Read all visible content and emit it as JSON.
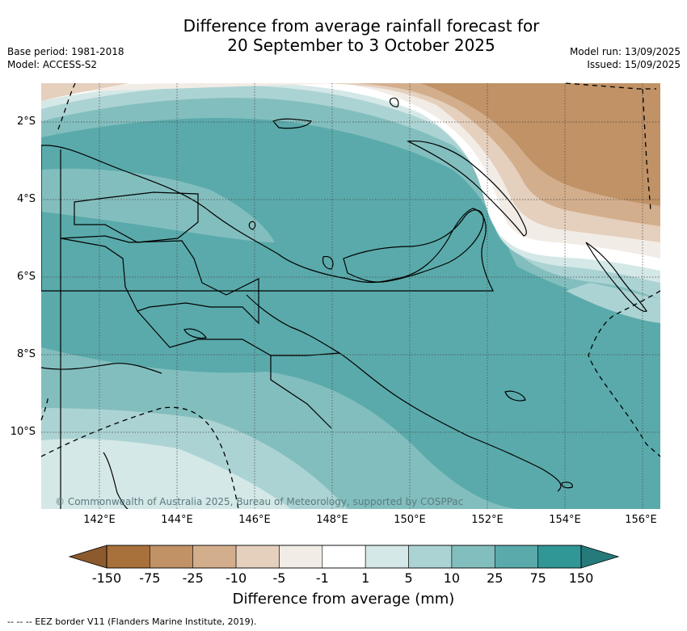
{
  "header": {
    "title_line1": "Difference from average rainfall forecast for",
    "title_line2": "20 September to 3 October 2025",
    "base_period": "Base period: 1981-2018",
    "model": "Model: ACCESS-S2",
    "model_run": "Model run: 13/09/2025",
    "issued": "Issued: 15/09/2025"
  },
  "map": {
    "region": "Papua New Guinea",
    "lat_labels": [
      "2°S",
      "4°S",
      "6°S",
      "8°S",
      "10°S"
    ],
    "lon_labels": [
      "142°E",
      "144°E",
      "146°E",
      "148°E",
      "150°E",
      "152°E",
      "154°E",
      "156°E"
    ],
    "extent": {
      "lon": [
        140.6,
        156.5
      ],
      "lat": [
        -1.1,
        -12.1
      ]
    },
    "copyright": "© Commonwealth of Australia 2025, Bureau of Meteorology, supported by COSPPac"
  },
  "legend": {
    "title": "Difference from average (mm)",
    "ticks": [
      "-150",
      "-75",
      "-25",
      "-10",
      "-5",
      "-1",
      "1",
      "5",
      "10",
      "25",
      "75",
      "150"
    ],
    "colors": [
      "#a8703a",
      "#c09266",
      "#d3ae8c",
      "#e5cfbd",
      "#f2ece6",
      "#ffffff",
      "#d4e8e7",
      "#acd3d3",
      "#83bebe",
      "#5aaaab",
      "#319696"
    ],
    "extend_low_color": "#8c5a2c",
    "extend_high_color": "#267a7a"
  },
  "footnote": "--  --  -- EEZ border V11 (Flanders Marine Institute, 2019)."
}
